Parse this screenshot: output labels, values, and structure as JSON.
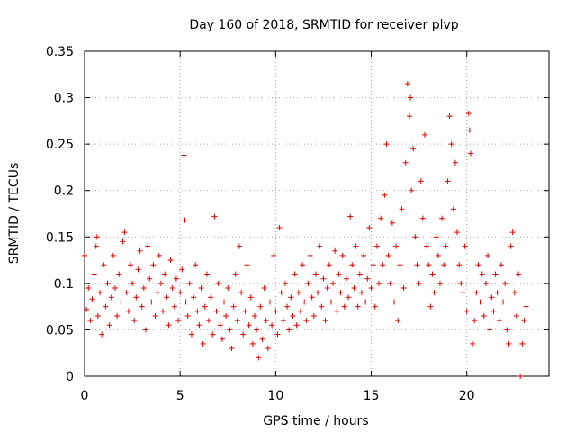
{
  "chart_data": {
    "type": "scatter",
    "title": "Day 160 of 2018, SRMTID for receiver plvp",
    "xlabel": "GPS time / hours",
    "ylabel": "SRMTID / TECUs",
    "xlim": [
      0,
      24.3
    ],
    "ylim": [
      0,
      0.35
    ],
    "x_ticks": [
      0,
      5,
      10,
      15,
      20
    ],
    "x_tick_labels": [
      "0",
      "5",
      "10",
      "15",
      "20"
    ],
    "y_ticks": [
      0,
      0.05,
      0.1,
      0.15,
      0.2,
      0.25,
      0.3,
      0.35
    ],
    "y_tick_labels": [
      "0",
      "0.05",
      "0.1",
      "0.15",
      "0.2",
      "0.25",
      "0.3",
      "0.35"
    ],
    "grid": true,
    "marker": "+",
    "marker_color": "#e00000",
    "series": [
      {
        "name": "SRMTID",
        "points": [
          [
            0.0,
            0.13
          ],
          [
            0.1,
            0.072
          ],
          [
            0.2,
            0.095
          ],
          [
            0.3,
            0.06
          ],
          [
            0.4,
            0.083
          ],
          [
            0.5,
            0.11
          ],
          [
            0.6,
            0.14
          ],
          [
            0.65,
            0.15
          ],
          [
            0.7,
            0.065
          ],
          [
            0.8,
            0.09
          ],
          [
            0.9,
            0.045
          ],
          [
            1.0,
            0.12
          ],
          [
            1.1,
            0.075
          ],
          [
            1.2,
            0.1
          ],
          [
            1.3,
            0.055
          ],
          [
            1.4,
            0.085
          ],
          [
            1.5,
            0.13
          ],
          [
            1.6,
            0.095
          ],
          [
            1.7,
            0.065
          ],
          [
            1.8,
            0.11
          ],
          [
            1.9,
            0.08
          ],
          [
            2.0,
            0.145
          ],
          [
            2.1,
            0.155
          ],
          [
            2.2,
            0.09
          ],
          [
            2.3,
            0.07
          ],
          [
            2.4,
            0.12
          ],
          [
            2.5,
            0.1
          ],
          [
            2.6,
            0.06
          ],
          [
            2.7,
            0.085
          ],
          [
            2.8,
            0.115
          ],
          [
            2.9,
            0.135
          ],
          [
            3.0,
            0.075
          ],
          [
            3.1,
            0.095
          ],
          [
            3.2,
            0.05
          ],
          [
            3.3,
            0.14
          ],
          [
            3.4,
            0.105
          ],
          [
            3.5,
            0.08
          ],
          [
            3.6,
            0.12
          ],
          [
            3.7,
            0.065
          ],
          [
            3.8,
            0.09
          ],
          [
            3.9,
            0.13
          ],
          [
            4.0,
            0.1
          ],
          [
            4.1,
            0.07
          ],
          [
            4.2,
            0.11
          ],
          [
            4.3,
            0.085
          ],
          [
            4.4,
            0.055
          ],
          [
            4.5,
            0.125
          ],
          [
            4.6,
            0.095
          ],
          [
            4.7,
            0.075
          ],
          [
            4.8,
            0.105
          ],
          [
            4.9,
            0.06
          ],
          [
            5.0,
            0.09
          ],
          [
            5.1,
            0.115
          ],
          [
            5.2,
            0.238
          ],
          [
            5.25,
            0.168
          ],
          [
            5.3,
            0.08
          ],
          [
            5.4,
            0.065
          ],
          [
            5.5,
            0.1
          ],
          [
            5.6,
            0.045
          ],
          [
            5.7,
            0.085
          ],
          [
            5.8,
            0.12
          ],
          [
            5.9,
            0.07
          ],
          [
            6.0,
            0.055
          ],
          [
            6.1,
            0.095
          ],
          [
            6.2,
            0.035
          ],
          [
            6.3,
            0.075
          ],
          [
            6.4,
            0.11
          ],
          [
            6.5,
            0.06
          ],
          [
            6.6,
            0.085
          ],
          [
            6.7,
            0.045
          ],
          [
            6.8,
            0.172
          ],
          [
            6.9,
            0.07
          ],
          [
            7.0,
            0.1
          ],
          [
            7.1,
            0.055
          ],
          [
            7.2,
            0.04
          ],
          [
            7.3,
            0.08
          ],
          [
            7.4,
            0.065
          ],
          [
            7.5,
            0.095
          ],
          [
            7.6,
            0.05
          ],
          [
            7.7,
            0.03
          ],
          [
            7.8,
            0.075
          ],
          [
            7.9,
            0.11
          ],
          [
            8.0,
            0.06
          ],
          [
            8.1,
            0.14
          ],
          [
            8.2,
            0.09
          ],
          [
            8.3,
            0.045
          ],
          [
            8.4,
            0.07
          ],
          [
            8.5,
            0.12
          ],
          [
            8.6,
            0.055
          ],
          [
            8.7,
            0.085
          ],
          [
            8.8,
            0.035
          ],
          [
            8.9,
            0.065
          ],
          [
            9.0,
            0.05
          ],
          [
            9.1,
            0.02
          ],
          [
            9.2,
            0.075
          ],
          [
            9.3,
            0.04
          ],
          [
            9.4,
            0.095
          ],
          [
            9.5,
            0.06
          ],
          [
            9.6,
            0.03
          ],
          [
            9.7,
            0.08
          ],
          [
            9.8,
            0.055
          ],
          [
            9.9,
            0.13
          ],
          [
            10.0,
            0.07
          ],
          [
            10.1,
            0.045
          ],
          [
            10.2,
            0.16
          ],
          [
            10.3,
            0.09
          ],
          [
            10.4,
            0.06
          ],
          [
            10.5,
            0.1
          ],
          [
            10.6,
            0.075
          ],
          [
            10.7,
            0.05
          ],
          [
            10.8,
            0.085
          ],
          [
            10.9,
            0.065
          ],
          [
            11.0,
            0.11
          ],
          [
            11.1,
            0.055
          ],
          [
            11.2,
            0.09
          ],
          [
            11.3,
            0.07
          ],
          [
            11.4,
            0.12
          ],
          [
            11.5,
            0.08
          ],
          [
            11.6,
            0.06
          ],
          [
            11.7,
            0.1
          ],
          [
            11.8,
            0.13
          ],
          [
            11.9,
            0.085
          ],
          [
            12.0,
            0.065
          ],
          [
            12.1,
            0.11
          ],
          [
            12.2,
            0.09
          ],
          [
            12.3,
            0.14
          ],
          [
            12.4,
            0.075
          ],
          [
            12.5,
            0.105
          ],
          [
            12.6,
            0.06
          ],
          [
            12.7,
            0.095
          ],
          [
            12.8,
            0.12
          ],
          [
            12.9,
            0.08
          ],
          [
            13.0,
            0.1
          ],
          [
            13.1,
            0.135
          ],
          [
            13.2,
            0.07
          ],
          [
            13.3,
            0.11
          ],
          [
            13.4,
            0.09
          ],
          [
            13.5,
            0.13
          ],
          [
            13.6,
            0.075
          ],
          [
            13.7,
            0.105
          ],
          [
            13.8,
            0.085
          ],
          [
            13.9,
            0.172
          ],
          [
            14.0,
            0.12
          ],
          [
            14.1,
            0.095
          ],
          [
            14.2,
            0.14
          ],
          [
            14.3,
            0.075
          ],
          [
            14.4,
            0.11
          ],
          [
            14.5,
            0.09
          ],
          [
            14.6,
            0.13
          ],
          [
            14.7,
            0.08
          ],
          [
            14.8,
            0.105
          ],
          [
            14.9,
            0.16
          ],
          [
            15.0,
            0.095
          ],
          [
            15.1,
            0.12
          ],
          [
            15.2,
            0.075
          ],
          [
            15.3,
            0.14
          ],
          [
            15.4,
            0.1
          ],
          [
            15.5,
            0.17
          ],
          [
            15.6,
            0.12
          ],
          [
            15.7,
            0.195
          ],
          [
            15.8,
            0.25
          ],
          [
            15.9,
            0.13
          ],
          [
            16.0,
            0.1
          ],
          [
            16.1,
            0.165
          ],
          [
            16.2,
            0.08
          ],
          [
            16.3,
            0.14
          ],
          [
            16.4,
            0.06
          ],
          [
            16.5,
            0.12
          ],
          [
            16.6,
            0.18
          ],
          [
            16.7,
            0.095
          ],
          [
            16.8,
            0.23
          ],
          [
            16.9,
            0.315
          ],
          [
            17.0,
            0.28
          ],
          [
            17.05,
            0.3
          ],
          [
            17.1,
            0.2
          ],
          [
            17.2,
            0.245
          ],
          [
            17.3,
            0.15
          ],
          [
            17.4,
            0.12
          ],
          [
            17.5,
            0.1
          ],
          [
            17.6,
            0.21
          ],
          [
            17.7,
            0.17
          ],
          [
            17.8,
            0.26
          ],
          [
            17.9,
            0.14
          ],
          [
            18.0,
            0.12
          ],
          [
            18.1,
            0.075
          ],
          [
            18.2,
            0.11
          ],
          [
            18.3,
            0.09
          ],
          [
            18.4,
            0.15
          ],
          [
            18.5,
            0.13
          ],
          [
            18.6,
            0.1
          ],
          [
            18.7,
            0.17
          ],
          [
            18.8,
            0.12
          ],
          [
            18.9,
            0.14
          ],
          [
            19.0,
            0.21
          ],
          [
            19.1,
            0.28
          ],
          [
            19.2,
            0.25
          ],
          [
            19.3,
            0.18
          ],
          [
            19.4,
            0.23
          ],
          [
            19.5,
            0.155
          ],
          [
            19.6,
            0.12
          ],
          [
            19.7,
            0.1
          ],
          [
            19.8,
            0.09
          ],
          [
            19.9,
            0.14
          ],
          [
            20.0,
            0.07
          ],
          [
            20.1,
            0.283
          ],
          [
            20.15,
            0.265
          ],
          [
            20.2,
            0.24
          ],
          [
            20.3,
            0.035
          ],
          [
            20.4,
            0.06
          ],
          [
            20.5,
            0.09
          ],
          [
            20.6,
            0.12
          ],
          [
            20.7,
            0.08
          ],
          [
            20.8,
            0.11
          ],
          [
            20.9,
            0.065
          ],
          [
            21.0,
            0.1
          ],
          [
            21.1,
            0.13
          ],
          [
            21.2,
            0.05
          ],
          [
            21.3,
            0.085
          ],
          [
            21.4,
            0.07
          ],
          [
            21.5,
            0.11
          ],
          [
            21.6,
            0.09
          ],
          [
            21.7,
            0.06
          ],
          [
            21.8,
            0.12
          ],
          [
            21.9,
            0.08
          ],
          [
            22.0,
            0.1
          ],
          [
            22.1,
            0.05
          ],
          [
            22.2,
            0.035
          ],
          [
            22.3,
            0.14
          ],
          [
            22.4,
            0.155
          ],
          [
            22.5,
            0.09
          ],
          [
            22.6,
            0.065
          ],
          [
            22.7,
            0.11
          ],
          [
            22.8,
            0.0
          ],
          [
            22.9,
            0.035
          ],
          [
            23.0,
            0.06
          ],
          [
            23.1,
            0.075
          ]
        ]
      }
    ]
  }
}
